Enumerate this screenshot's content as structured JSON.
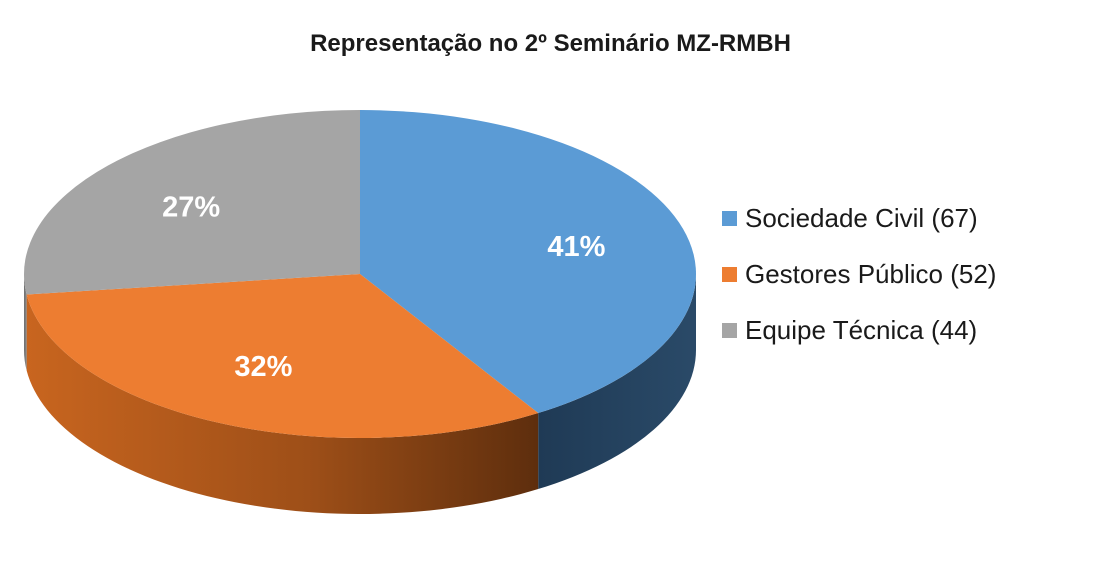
{
  "chart_data": {
    "type": "pie",
    "title": "Representação no 2º Seminário MZ-RMBH",
    "series": [
      {
        "name": "Sociedade Civil (67)",
        "value": 67,
        "percent_label": "41%",
        "color": "#5B9BD5"
      },
      {
        "name": "Gestores Público (52)",
        "value": 52,
        "percent_label": "32%",
        "color": "#ED7D31"
      },
      {
        "name": "Equipe Técnica (44)",
        "value": 44,
        "percent_label": "27%",
        "color": "#A5A5A5"
      }
    ],
    "legend_position": "right",
    "style": "3d"
  }
}
